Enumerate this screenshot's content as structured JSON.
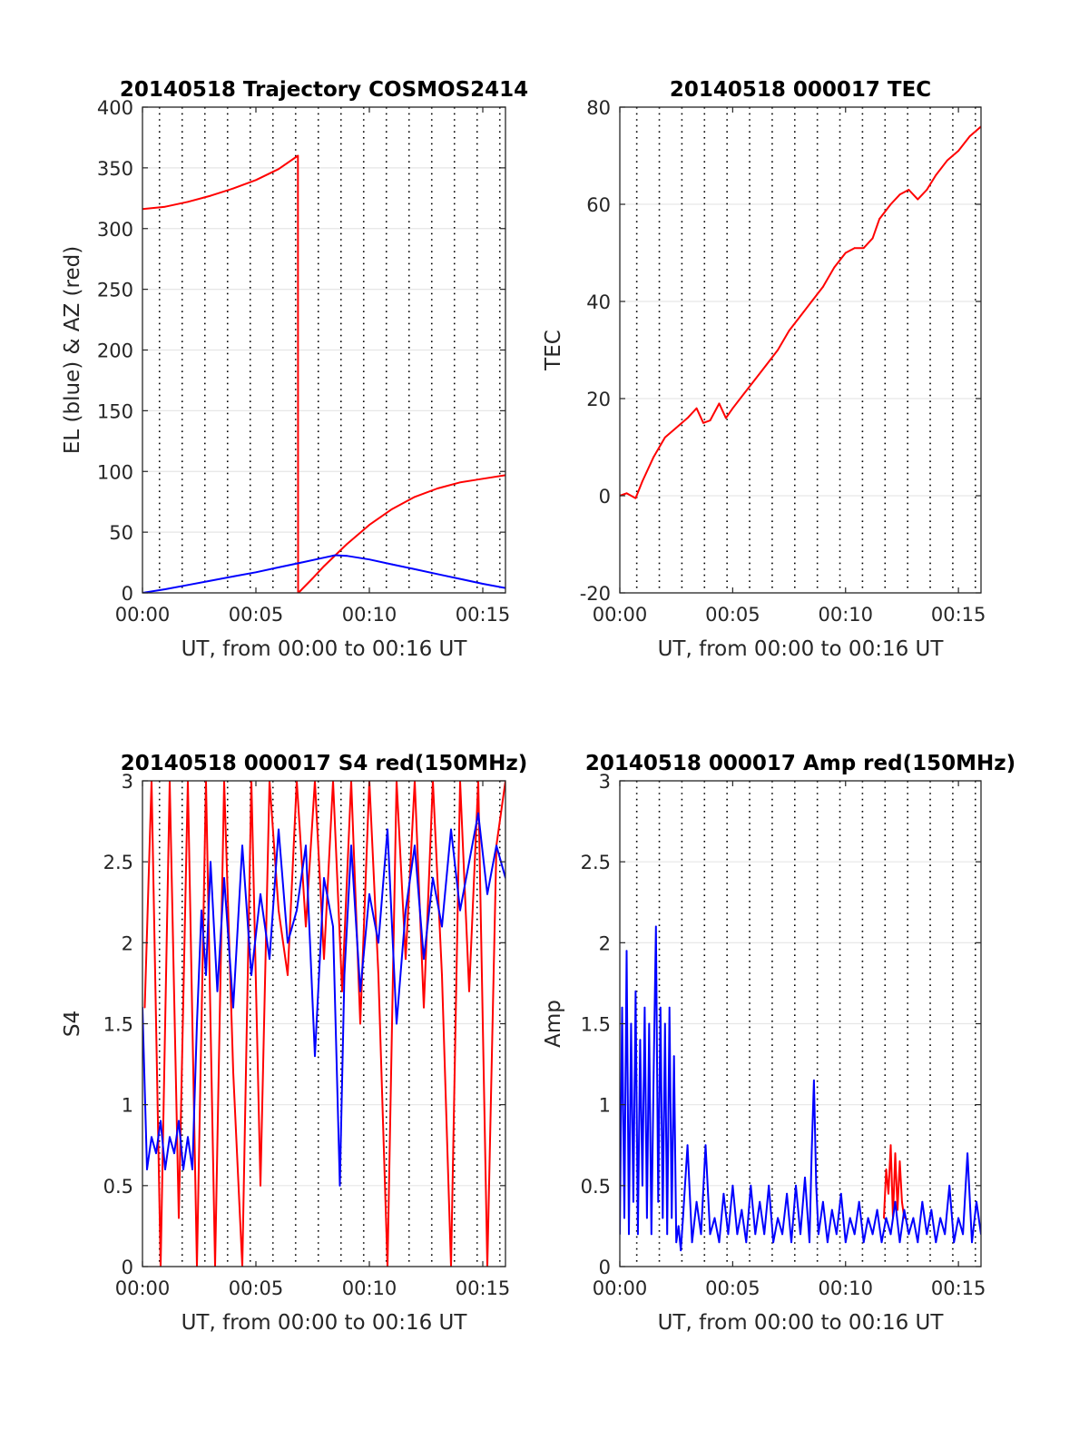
{
  "chart_data": [
    {
      "id": "trajectory",
      "type": "line",
      "title": "20140518 Trajectory COSMOS2414",
      "xlabel": "UT, from 00:00 to 00:16 UT",
      "ylabel": "EL (blue) & AZ (red)",
      "xlim": [
        0,
        16
      ],
      "ylim": [
        0,
        400
      ],
      "xticks": [
        0,
        5,
        10,
        15
      ],
      "xtick_labels": [
        "00:00",
        "00:05",
        "00:10",
        "00:15"
      ],
      "yticks": [
        0,
        50,
        100,
        150,
        200,
        250,
        300,
        350,
        400
      ],
      "ytick_labels": [
        "0",
        "50",
        "100",
        "150",
        "200",
        "250",
        "300",
        "350",
        "400"
      ],
      "grid": true,
      "vlines": [
        0.75,
        1.75,
        2.75,
        3.75,
        4.75,
        5.75,
        6.75,
        7.75,
        8.75,
        9.75,
        10.75,
        11.75,
        12.75,
        13.75,
        14.75,
        15.75
      ],
      "series": [
        {
          "color": "#ff0000",
          "x": [
            0,
            1,
            2,
            3,
            4,
            5,
            6,
            6.85,
            6.86,
            6.87,
            7.5,
            8,
            9,
            10,
            11,
            12,
            13,
            14,
            15,
            16
          ],
          "values": [
            316,
            318,
            322,
            327,
            333,
            340,
            349,
            360,
            0,
            0,
            12,
            22,
            40,
            56,
            69,
            79,
            86,
            91,
            94,
            97
          ]
        },
        {
          "color": "#0000ff",
          "x": [
            0,
            1,
            2,
            3,
            4,
            5,
            6,
            7,
            8,
            8.5,
            9,
            10,
            11,
            12,
            13,
            14,
            15,
            16
          ],
          "values": [
            0,
            3,
            6.5,
            10,
            13.5,
            17,
            21,
            25,
            29,
            31,
            30.5,
            27.5,
            23.5,
            19.5,
            15.5,
            11.5,
            7.5,
            4
          ]
        }
      ]
    },
    {
      "id": "tec",
      "type": "line",
      "title": "20140518 000017 TEC",
      "xlabel": "UT, from 00:00 to 00:16 UT",
      "ylabel": "TEC",
      "xlim": [
        0,
        16
      ],
      "ylim": [
        -20,
        80
      ],
      "xticks": [
        0,
        5,
        10,
        15
      ],
      "xtick_labels": [
        "00:00",
        "00:05",
        "00:10",
        "00:15"
      ],
      "yticks": [
        -20,
        0,
        20,
        40,
        60,
        80
      ],
      "ytick_labels": [
        "-20",
        "0",
        "20",
        "40",
        "60",
        "80"
      ],
      "grid": true,
      "vlines": [
        0.75,
        1.75,
        2.75,
        3.75,
        4.75,
        5.75,
        6.75,
        7.75,
        8.75,
        9.75,
        10.75,
        11.75,
        12.75,
        13.75,
        14.75,
        15.75
      ],
      "series": [
        {
          "color": "#ff0000",
          "x": [
            0,
            0.3,
            0.7,
            1.0,
            1.5,
            2.0,
            2.5,
            3.0,
            3.4,
            3.7,
            4.0,
            4.4,
            4.7,
            5.0,
            5.5,
            6.0,
            6.5,
            7.0,
            7.5,
            8.0,
            8.5,
            9.0,
            9.5,
            10.0,
            10.4,
            10.8,
            11.2,
            11.5,
            12.0,
            12.4,
            12.8,
            13.2,
            13.6,
            14.0,
            14.5,
            15.0,
            15.5,
            16.0
          ],
          "values": [
            0,
            0.5,
            -0.5,
            3,
            8,
            12,
            14,
            16,
            18,
            15,
            15.5,
            19,
            16,
            18,
            21,
            24,
            27,
            30,
            34,
            37,
            40,
            43,
            47,
            50,
            51,
            51,
            53,
            57,
            60,
            62,
            63,
            61,
            63,
            66,
            69,
            71,
            74,
            76
          ]
        }
      ]
    },
    {
      "id": "s4",
      "type": "line",
      "title": "20140518 000017 S4 red(150MHz)",
      "xlabel": "UT, from 00:00 to 00:16 UT",
      "ylabel": "S4",
      "xlim": [
        0,
        16
      ],
      "ylim": [
        0,
        3
      ],
      "xticks": [
        0,
        5,
        10,
        15
      ],
      "xtick_labels": [
        "00:00",
        "00:05",
        "00:10",
        "00:15"
      ],
      "yticks": [
        0,
        0.5,
        1,
        1.5,
        2,
        2.5,
        3
      ],
      "ytick_labels": [
        "0",
        "0.5",
        "1",
        "1.5",
        "2",
        "2.5",
        "3"
      ],
      "grid": true,
      "vlines": [
        0.75,
        1.75,
        2.75,
        3.75,
        4.75,
        5.75,
        6.75,
        7.75,
        8.75,
        9.75,
        10.75,
        11.75,
        12.75,
        13.75,
        14.75,
        15.75
      ],
      "series": [
        {
          "color": "#ff0000",
          "x": [
            0.1,
            0.4,
            0.8,
            1.2,
            1.6,
            2.0,
            2.4,
            2.8,
            3.2,
            3.6,
            4.0,
            4.4,
            4.8,
            5.2,
            5.6,
            6.0,
            6.4,
            6.8,
            7.2,
            7.6,
            8.0,
            8.4,
            8.8,
            9.2,
            9.6,
            10.0,
            10.4,
            10.8,
            11.2,
            11.6,
            12.0,
            12.4,
            12.8,
            13.2,
            13.6,
            14.0,
            14.4,
            14.8,
            15.2,
            15.6,
            16.0
          ],
          "values": [
            1.6,
            3,
            0,
            3,
            0.3,
            3,
            0,
            3,
            0,
            3,
            1.2,
            0,
            3,
            0.5,
            3,
            2.2,
            1.8,
            3,
            2.1,
            3,
            1.9,
            3,
            1.7,
            3,
            1.5,
            3,
            1.8,
            0,
            3,
            1.9,
            3,
            1.6,
            3,
            1.8,
            0,
            3,
            1.7,
            3,
            0,
            2.6,
            3
          ]
        },
        {
          "color": "#0000ff",
          "x": [
            0,
            0.2,
            0.4,
            0.6,
            0.8,
            1.0,
            1.2,
            1.4,
            1.6,
            1.8,
            2.0,
            2.2,
            2.4,
            2.6,
            2.8,
            3.0,
            3.3,
            3.6,
            4.0,
            4.4,
            4.8,
            5.2,
            5.6,
            6.0,
            6.4,
            6.8,
            7.2,
            7.6,
            8.0,
            8.4,
            8.7,
            8.9,
            9.2,
            9.6,
            10.0,
            10.4,
            10.8,
            11.2,
            11.6,
            12.0,
            12.4,
            12.8,
            13.2,
            13.6,
            14.0,
            14.4,
            14.8,
            15.2,
            15.6,
            16.0
          ],
          "values": [
            1.6,
            0.6,
            0.8,
            0.7,
            0.9,
            0.6,
            0.8,
            0.7,
            0.9,
            0.6,
            0.8,
            0.6,
            1.5,
            2.2,
            1.8,
            2.5,
            1.7,
            2.4,
            1.6,
            2.6,
            1.8,
            2.3,
            1.9,
            2.7,
            2.0,
            2.2,
            2.6,
            1.3,
            2.4,
            2.1,
            0.5,
            1.8,
            2.6,
            1.7,
            2.3,
            2.0,
            2.7,
            1.5,
            2.2,
            2.6,
            1.9,
            2.4,
            2.1,
            2.7,
            2.2,
            2.5,
            2.8,
            2.3,
            2.6,
            2.4
          ]
        }
      ]
    },
    {
      "id": "amp",
      "type": "line",
      "title": "20140518 000017 Amp red(150MHz)",
      "xlabel": "UT, from 00:00 to 00:16 UT",
      "ylabel": "Amp",
      "xlim": [
        0,
        16
      ],
      "ylim": [
        0,
        3
      ],
      "xticks": [
        0,
        5,
        10,
        15
      ],
      "xtick_labels": [
        "00:00",
        "00:05",
        "00:10",
        "00:15"
      ],
      "yticks": [
        0,
        0.5,
        1,
        1.5,
        2,
        2.5,
        3
      ],
      "ytick_labels": [
        "0",
        "0.5",
        "1",
        "1.5",
        "2",
        "2.5",
        "3"
      ],
      "grid": true,
      "vlines": [
        0.75,
        1.75,
        2.75,
        3.75,
        4.75,
        5.75,
        6.75,
        7.75,
        8.75,
        9.75,
        10.75,
        11.75,
        12.75,
        13.75,
        14.75,
        15.75
      ],
      "series": [
        {
          "color": "#ff0000",
          "x": [
            11.7,
            11.8,
            11.9,
            12.0,
            12.1,
            12.2,
            12.3,
            12.4,
            12.5,
            12.6
          ],
          "values": [
            0.3,
            0.6,
            0.45,
            0.75,
            0.3,
            0.7,
            0.35,
            0.65,
            0.4,
            0.3
          ]
        },
        {
          "color": "#0000ff",
          "x": [
            0.0,
            0.1,
            0.2,
            0.3,
            0.4,
            0.5,
            0.6,
            0.7,
            0.8,
            0.9,
            1.0,
            1.1,
            1.2,
            1.3,
            1.4,
            1.5,
            1.6,
            1.7,
            1.8,
            1.9,
            2.0,
            2.1,
            2.2,
            2.3,
            2.4,
            2.5,
            2.6,
            2.7,
            2.8,
            3.0,
            3.2,
            3.4,
            3.6,
            3.8,
            4.0,
            4.2,
            4.4,
            4.6,
            4.8,
            5.0,
            5.2,
            5.4,
            5.6,
            5.8,
            6.0,
            6.2,
            6.4,
            6.6,
            6.8,
            7.0,
            7.2,
            7.4,
            7.6,
            7.8,
            8.0,
            8.2,
            8.4,
            8.5,
            8.6,
            8.7,
            8.8,
            9.0,
            9.2,
            9.4,
            9.6,
            9.8,
            10.0,
            10.2,
            10.4,
            10.6,
            10.8,
            11.0,
            11.2,
            11.4,
            11.6,
            11.8,
            12.0,
            12.2,
            12.4,
            12.6,
            12.8,
            13.0,
            13.2,
            13.4,
            13.6,
            13.8,
            14.0,
            14.2,
            14.4,
            14.6,
            14.8,
            15.0,
            15.2,
            15.4,
            15.6,
            15.8,
            16.0
          ],
          "values": [
            0.2,
            1.6,
            0.3,
            1.95,
            0.2,
            1.5,
            0.4,
            1.7,
            0.2,
            1.4,
            0.5,
            1.6,
            0.3,
            1.5,
            0.2,
            1.2,
            2.1,
            0.4,
            1.6,
            0.3,
            1.5,
            0.2,
            1.6,
            0.3,
            1.3,
            0.15,
            0.25,
            0.1,
            0.3,
            0.75,
            0.15,
            0.4,
            0.2,
            0.75,
            0.2,
            0.3,
            0.15,
            0.45,
            0.2,
            0.5,
            0.2,
            0.35,
            0.15,
            0.5,
            0.2,
            0.4,
            0.2,
            0.5,
            0.15,
            0.3,
            0.2,
            0.45,
            0.15,
            0.5,
            0.2,
            0.55,
            0.15,
            0.7,
            1.15,
            0.5,
            0.2,
            0.4,
            0.15,
            0.35,
            0.2,
            0.45,
            0.15,
            0.3,
            0.2,
            0.4,
            0.15,
            0.3,
            0.2,
            0.35,
            0.15,
            0.3,
            0.2,
            0.4,
            0.15,
            0.35,
            0.2,
            0.3,
            0.15,
            0.4,
            0.2,
            0.35,
            0.15,
            0.3,
            0.2,
            0.5,
            0.15,
            0.3,
            0.2,
            0.7,
            0.15,
            0.4,
            0.2
          ]
        }
      ]
    }
  ]
}
